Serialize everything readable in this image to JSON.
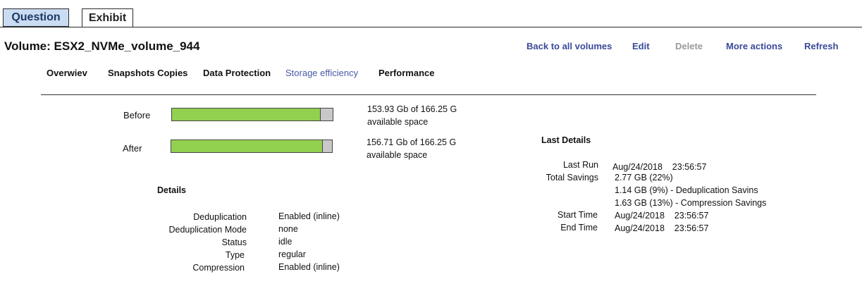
{
  "tabs": {
    "question": "Question",
    "exhibit": "Exhibit"
  },
  "volume": {
    "title": "Volume: ESX2_NVMe_volume_944"
  },
  "actions": {
    "back": "Back to all volumes",
    "edit": "Edit",
    "delete": "Delete",
    "more": "More actions",
    "refresh": "Refresh"
  },
  "subtabs": [
    "Overwiev",
    "Snapshots Copies",
    "Data Protection",
    "Storage efficiency",
    "Performance"
  ],
  "active_subtab": "Storage efficiency",
  "colors": {
    "bar_fill": "#92d050",
    "bar_empty": "#c8c8c8",
    "link": "#3a4a9a"
  },
  "space": {
    "before": {
      "label": "Before",
      "used": 153.93,
      "total": 166.25,
      "text1": "153.93 Gb of 166.25 G",
      "text2": "available space"
    },
    "after": {
      "label": "After",
      "used": 156.71,
      "total": 166.25,
      "text1": "156.71 Gb of 166.25 G",
      "text2": "available space"
    }
  },
  "details": {
    "heading": "Details",
    "rows": [
      {
        "label": "Deduplication",
        "value": "Enabled (inline)"
      },
      {
        "label": "Deduplication Mode",
        "value": "none"
      },
      {
        "label": "Status",
        "value": "idle"
      },
      {
        "label": "Type",
        "value": "regular"
      },
      {
        "label": "Compression",
        "value": "Enabled (inline)"
      }
    ]
  },
  "last_details": {
    "heading": "Last Details",
    "last_run_label": "Last Run",
    "last_run_value": "Aug/24/2018    23:56:57",
    "total_savings_label": "Total Savings",
    "total_savings_value": "2.77 GB (22%)",
    "dedup_savings": "1.14 GB (9%) - Deduplication Savins",
    "compression_savings": "1.63 GB (13%) - Compression Savings",
    "start_time_label": "Start Time",
    "start_time_value": "Aug/24/2018    23:56:57",
    "end_time_label": "End Time",
    "end_time_value": "Aug/24/2018    23:56:57"
  }
}
